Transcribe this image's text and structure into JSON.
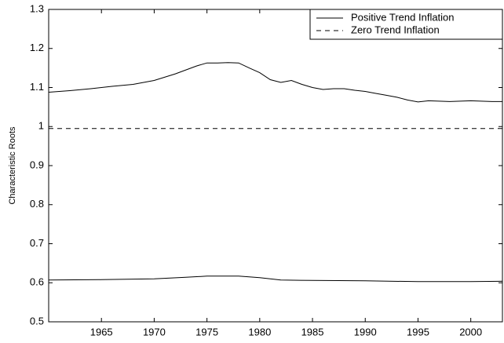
{
  "chart_data": {
    "type": "line",
    "ylabel": "Characteristic Roots",
    "xlim": [
      1960,
      2003
    ],
    "ylim": [
      0.5,
      1.3
    ],
    "xticks": [
      1965,
      1970,
      1975,
      1980,
      1985,
      1990,
      1995,
      2000
    ],
    "yticks": [
      0.5,
      0.6,
      0.7,
      0.8,
      0.9,
      1,
      1.1,
      1.2,
      1.3
    ],
    "legend": "upper-right",
    "series": [
      {
        "name": "Positive Trend Inflation",
        "color": "#000000",
        "dash": false,
        "x": [
          1960,
          1962,
          1964,
          1966,
          1968,
          1970,
          1972,
          1974,
          1975,
          1976,
          1977,
          1978,
          1979,
          1980,
          1981,
          1982,
          1983,
          1984,
          1985,
          1986,
          1987,
          1988,
          1989,
          1990,
          1991,
          1992,
          1993,
          1994,
          1995,
          1996,
          1997,
          1998,
          1999,
          2000,
          2001,
          2002,
          2003
        ],
        "values": [
          1.088,
          1.092,
          1.097,
          1.103,
          1.108,
          1.118,
          1.135,
          1.155,
          1.163,
          1.163,
          1.164,
          1.163,
          1.15,
          1.138,
          1.12,
          1.113,
          1.118,
          1.108,
          1.1,
          1.095,
          1.097,
          1.097,
          1.093,
          1.09,
          1.085,
          1.08,
          1.075,
          1.068,
          1.063,
          1.066,
          1.065,
          1.064,
          1.065,
          1.066,
          1.065,
          1.064,
          1.064
        ]
      },
      {
        "color": "#000000",
        "dash": false,
        "x": [
          1960,
          1965,
          1970,
          1973,
          1975,
          1978,
          1980,
          1982,
          1985,
          1990,
          1995,
          2000,
          2003
        ],
        "values": [
          0.607,
          0.608,
          0.61,
          0.614,
          0.617,
          0.617,
          0.613,
          0.607,
          0.606,
          0.605,
          0.603,
          0.603,
          0.604
        ]
      },
      {
        "name": "Zero Trend Inflation",
        "color": "#000000",
        "dash": true,
        "x": [
          1960,
          2003
        ],
        "values": [
          0.995,
          0.995
        ]
      }
    ]
  }
}
